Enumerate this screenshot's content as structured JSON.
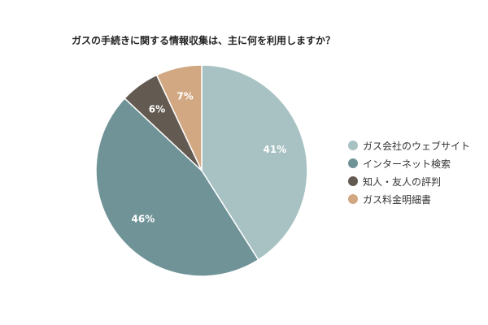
{
  "chart_data": {
    "type": "pie",
    "title": "ガスの手続きに関する情報収集は、主に何を利用しますか？",
    "categories": [
      "ガス会社のウェブサイト",
      "インターネット検索",
      "知人・友人の評判",
      "ガス料金明細書"
    ],
    "values": [
      41,
      46,
      6,
      7
    ],
    "value_labels": [
      "41%",
      "46%",
      "6%",
      "7%"
    ],
    "colors": [
      "#a8c1c2",
      "#6f9397",
      "#635a51",
      "#d1a882"
    ],
    "start": "top",
    "direction": "clockwise",
    "legend_position": "right"
  }
}
